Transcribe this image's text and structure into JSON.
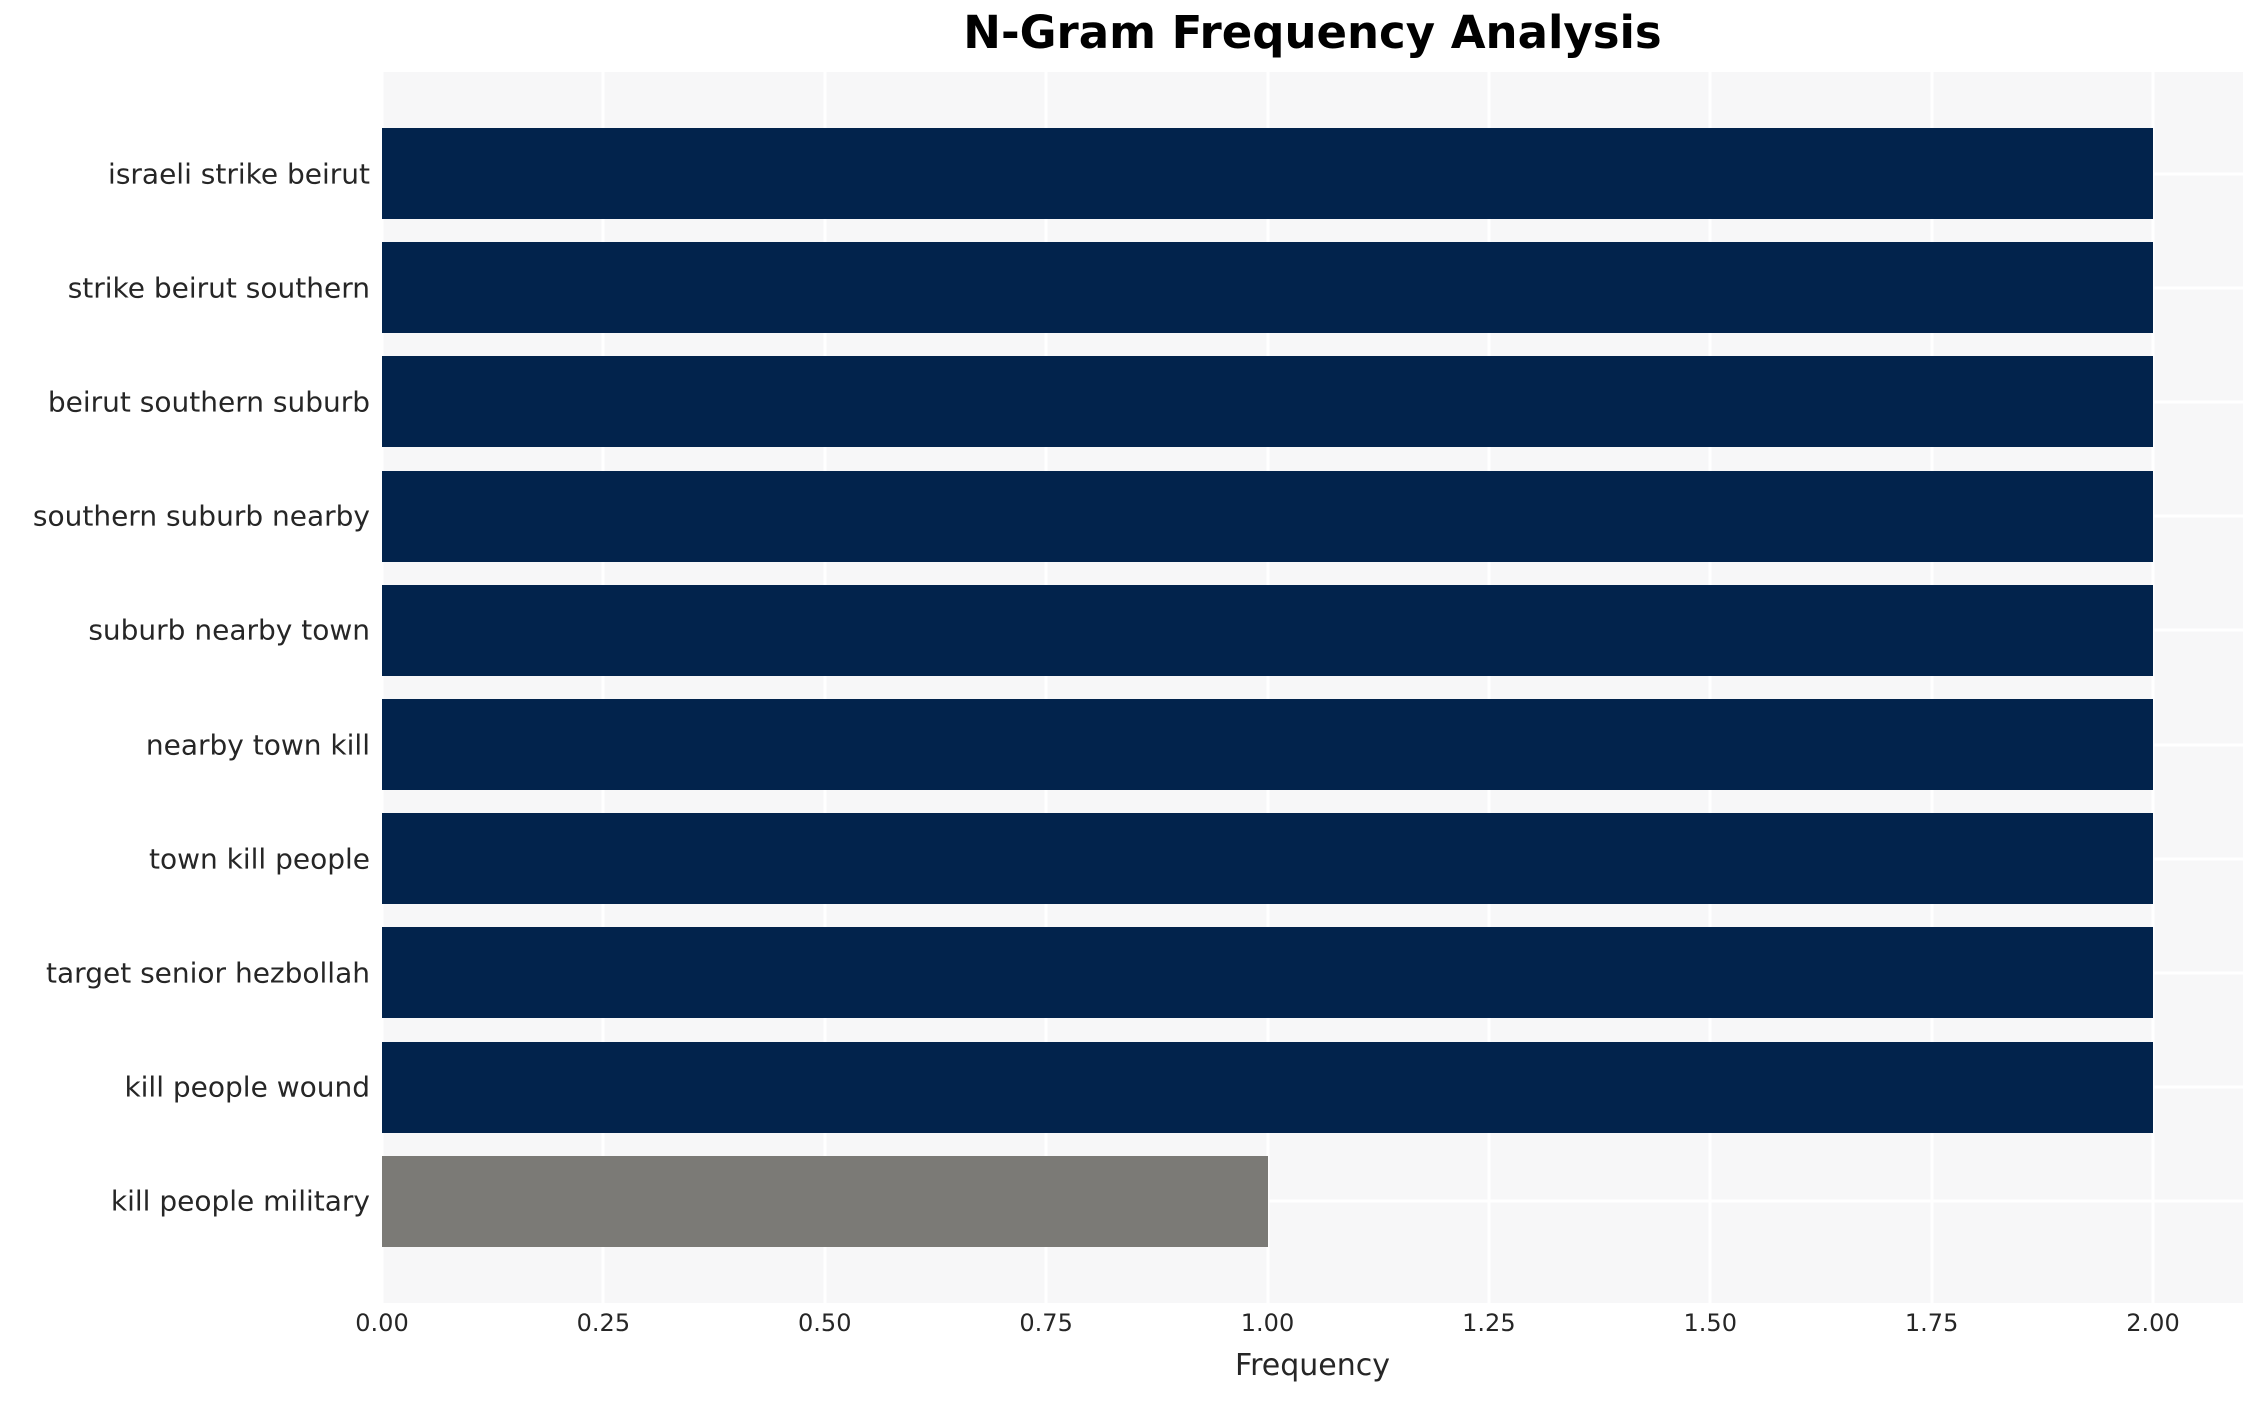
{
  "title": "N-Gram Frequency Analysis",
  "chart_data": {
    "type": "bar",
    "orientation": "horizontal",
    "title": "N-Gram Frequency Analysis",
    "xlabel": "Frequency",
    "ylabel": "",
    "categories": [
      "israeli strike beirut",
      "strike beirut southern",
      "beirut southern suburb",
      "southern suburb nearby",
      "suburb nearby town",
      "nearby town kill",
      "town kill people",
      "target senior hezbollah",
      "kill people wound",
      "kill people military"
    ],
    "values": [
      2,
      2,
      2,
      2,
      2,
      2,
      2,
      2,
      2,
      1
    ],
    "bar_colors": [
      "#02234c",
      "#02234c",
      "#02234c",
      "#02234c",
      "#02234c",
      "#02234c",
      "#02234c",
      "#02234c",
      "#02234c",
      "#7b7a76"
    ],
    "xticks": [
      "0.00",
      "0.25",
      "0.50",
      "0.75",
      "1.00",
      "1.25",
      "1.50",
      "1.75",
      "2.00"
    ],
    "xtick_values": [
      0,
      0.25,
      0.5,
      0.75,
      1.0,
      1.25,
      1.5,
      1.75,
      2.0
    ],
    "xlim": [
      0,
      2.1
    ],
    "grid": true,
    "legend": false,
    "colors": {
      "plot_background": "#f7f7f8",
      "figure_background": "#ffffff",
      "gridline": "#ffffff",
      "bar_navy": "#02234c",
      "bar_gray": "#7b7a76",
      "text": "#262626",
      "title_text": "#000000"
    }
  }
}
